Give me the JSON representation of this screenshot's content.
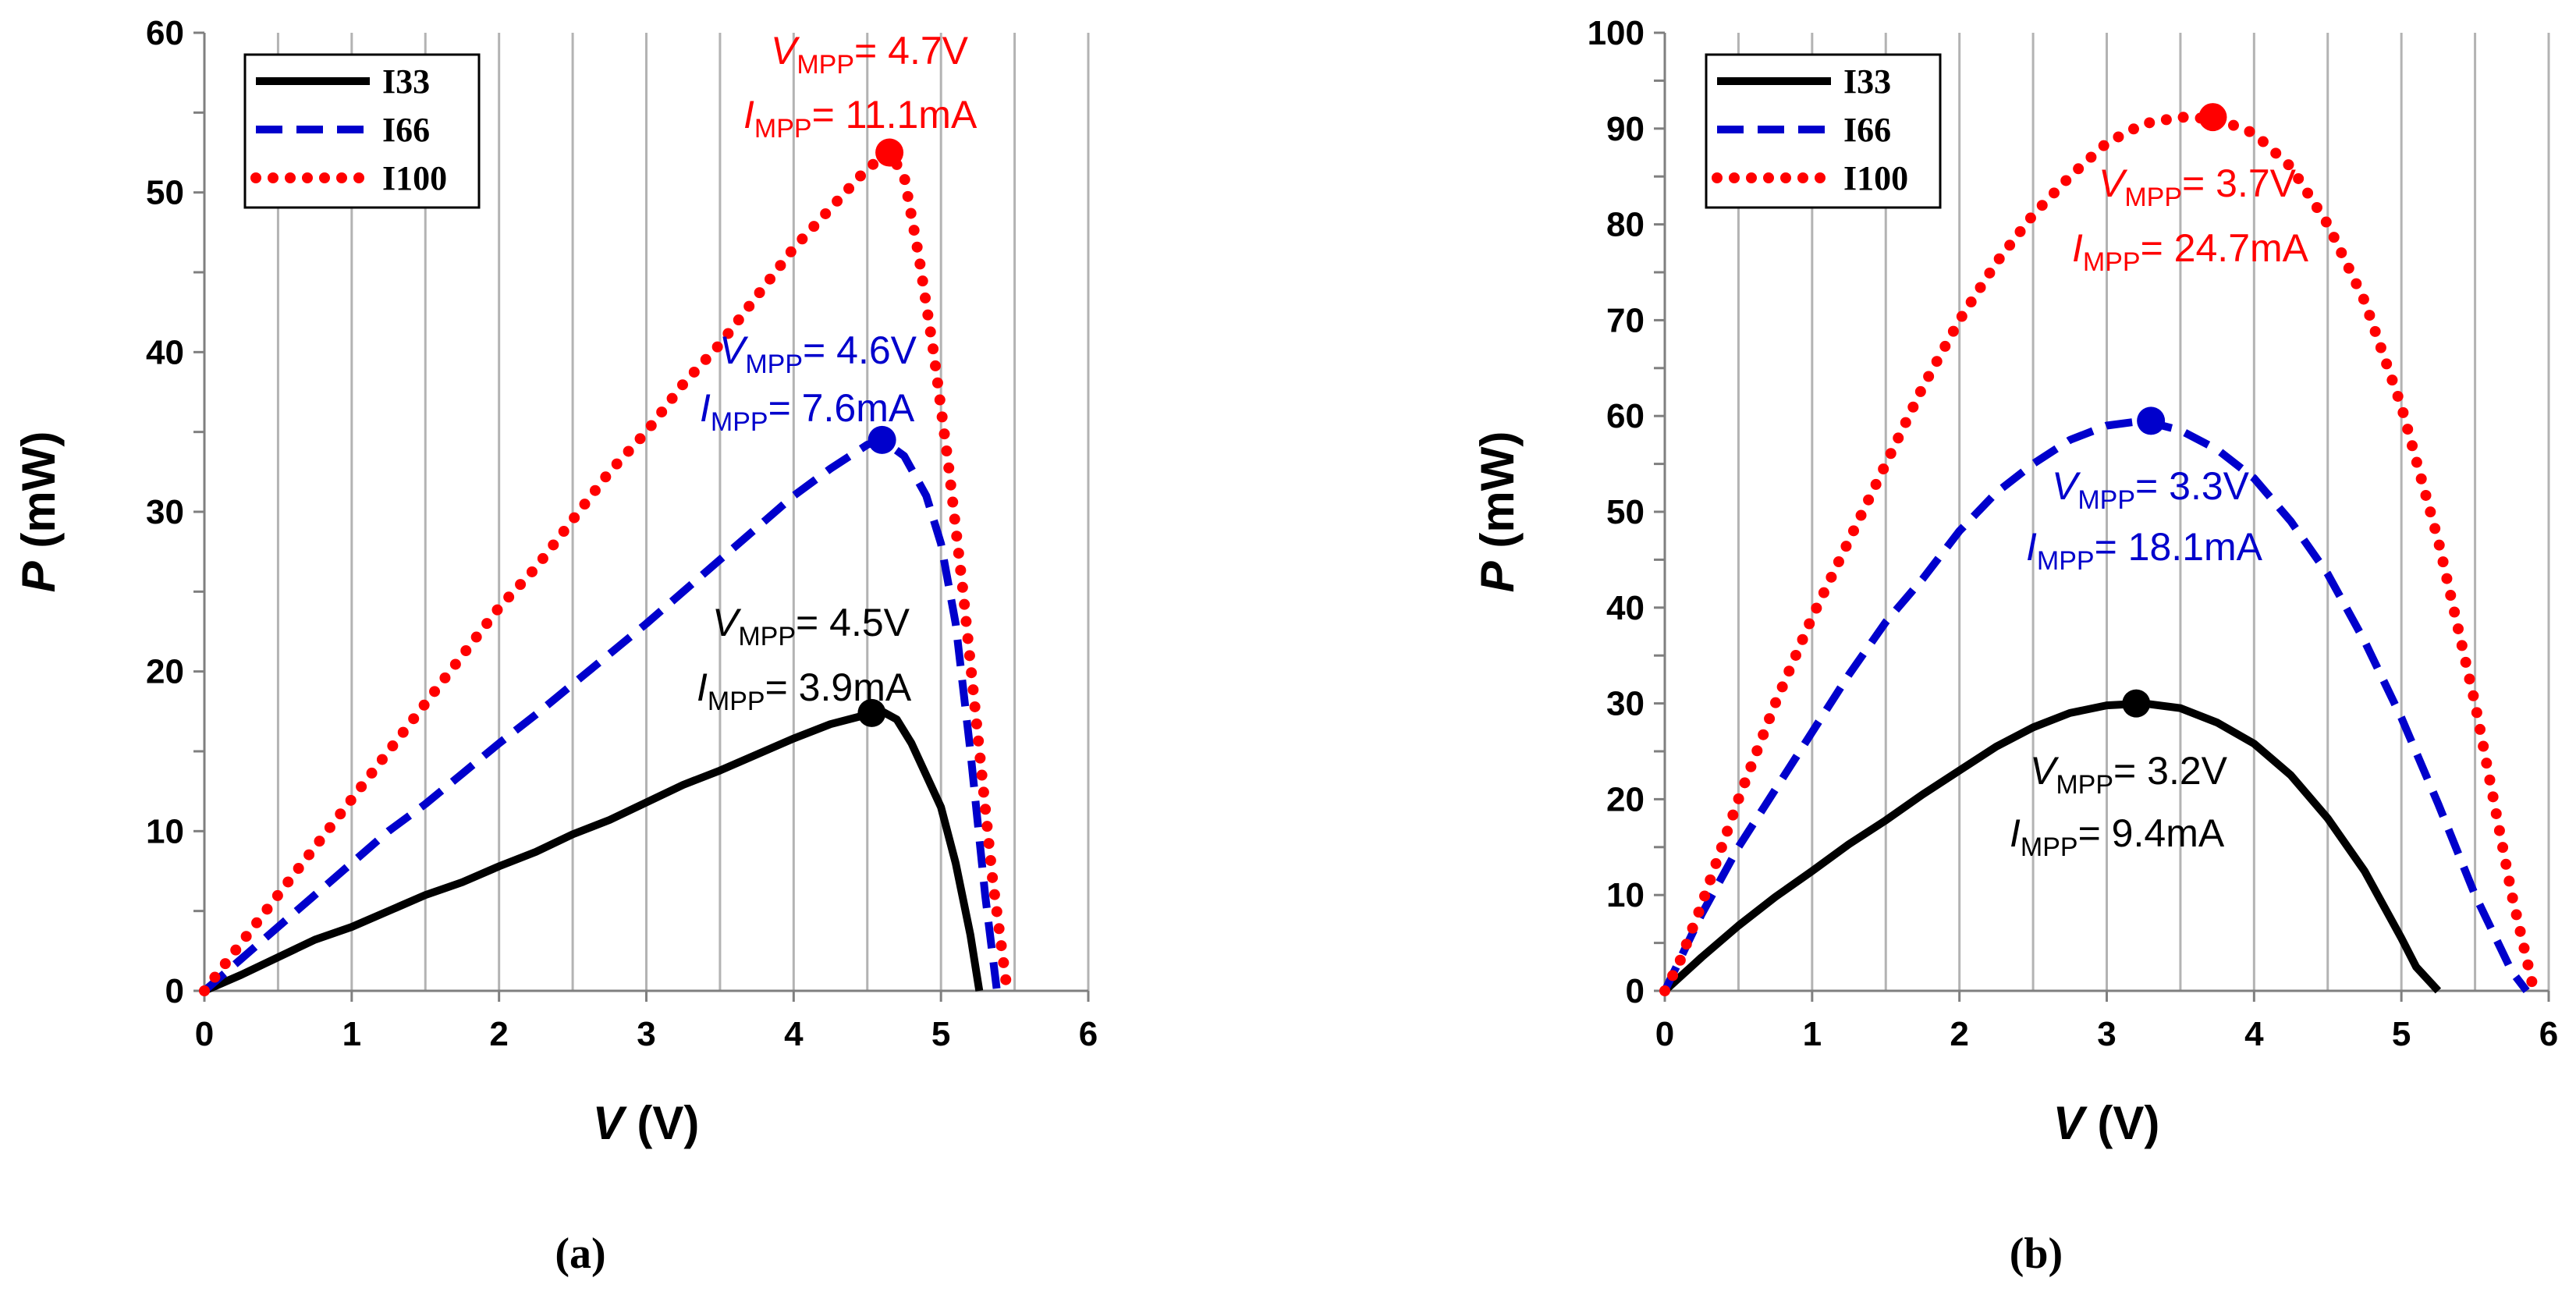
{
  "chart_data": [
    {
      "type": "line",
      "panel_label": "(a)",
      "xlabel_var": "V",
      "xlabel_unit": " (V)",
      "ylabel_var": "P",
      "ylabel_unit": " (mW)",
      "xlim": [
        0,
        6
      ],
      "ylim": [
        0,
        60
      ],
      "x_ticks": [
        0,
        1,
        2,
        3,
        4,
        5,
        6
      ],
      "y_ticks": [
        0,
        10,
        20,
        30,
        40,
        50,
        60
      ],
      "grid": "vertical",
      "legend_position": "top-left",
      "series": [
        {
          "name": "I33",
          "color": "#000000",
          "style": "solid",
          "x": [
            0,
            0.25,
            0.5,
            0.75,
            1.0,
            1.25,
            1.5,
            1.75,
            2.0,
            2.25,
            2.5,
            2.75,
            3.0,
            3.25,
            3.5,
            3.75,
            4.0,
            4.25,
            4.5,
            4.6,
            4.7,
            4.8,
            4.9,
            5.0,
            5.1,
            5.2,
            5.26
          ],
          "y": [
            0,
            1.0,
            2.1,
            3.2,
            4.0,
            5.0,
            6.0,
            6.8,
            7.8,
            8.7,
            9.8,
            10.7,
            11.8,
            12.9,
            13.8,
            14.8,
            15.8,
            16.7,
            17.3,
            17.5,
            17.0,
            15.5,
            13.5,
            11.5,
            8.0,
            3.5,
            0
          ],
          "mpp": {
            "x": 4.53,
            "y": 17.4
          },
          "annotation_v": "= 4.5V",
          "annotation_i": "= 3.9mA"
        },
        {
          "name": "I66",
          "color": "#0000cc",
          "style": "dashed",
          "x": [
            0,
            0.25,
            0.5,
            0.75,
            1.0,
            1.25,
            1.5,
            1.75,
            2.0,
            2.25,
            2.5,
            2.75,
            3.0,
            3.25,
            3.5,
            3.75,
            4.0,
            4.25,
            4.5,
            4.6,
            4.75,
            4.9,
            5.0,
            5.1,
            5.2,
            5.3,
            5.38
          ],
          "y": [
            0,
            2.0,
            4.0,
            6.0,
            8.0,
            10.0,
            11.7,
            13.6,
            15.5,
            17.3,
            19.2,
            21.1,
            23.0,
            25.0,
            27.0,
            29.0,
            31.0,
            32.7,
            34.2,
            34.5,
            33.5,
            31.0,
            28.0,
            23.0,
            15.0,
            6.0,
            0
          ],
          "mpp": {
            "x": 4.6,
            "y": 34.5
          },
          "annotation_v": "= 4.6V",
          "annotation_i": "= 7.6mA"
        },
        {
          "name": "I100",
          "color": "#ff0000",
          "style": "dotted",
          "x": [
            0,
            0.25,
            0.5,
            0.75,
            1.0,
            1.25,
            1.5,
            1.75,
            2.0,
            2.25,
            2.5,
            2.75,
            3.0,
            3.25,
            3.5,
            3.75,
            4.0,
            4.25,
            4.5,
            4.65,
            4.75,
            4.85,
            4.95,
            5.05,
            5.15,
            5.25,
            5.35,
            5.45
          ],
          "y": [
            0,
            3.0,
            6.0,
            9.0,
            12.0,
            15.0,
            18.0,
            21.0,
            24.0,
            26.5,
            29.5,
            32.5,
            35.0,
            38.0,
            40.5,
            43.5,
            46.5,
            49.0,
            51.5,
            52.5,
            51.0,
            46.0,
            40.0,
            33.0,
            25.0,
            16.0,
            7.0,
            0
          ],
          "mpp": {
            "x": 4.65,
            "y": 52.5
          },
          "annotation_v": "= 4.7V",
          "annotation_i": "= 11.1mA"
        }
      ]
    },
    {
      "type": "line",
      "panel_label": "(b)",
      "xlabel_var": "V",
      "xlabel_unit": " (V)",
      "ylabel_var": "P",
      "ylabel_unit": " (mW)",
      "xlim": [
        0,
        6
      ],
      "ylim": [
        0,
        100
      ],
      "x_ticks": [
        0,
        1,
        2,
        3,
        4,
        5,
        6
      ],
      "y_ticks": [
        0,
        10,
        20,
        30,
        40,
        50,
        60,
        70,
        80,
        90,
        100
      ],
      "grid": "vertical",
      "legend_position": "top-left",
      "series": [
        {
          "name": "I33",
          "color": "#000000",
          "style": "solid",
          "x": [
            0,
            0.25,
            0.5,
            0.75,
            1.0,
            1.25,
            1.5,
            1.75,
            2.0,
            2.25,
            2.5,
            2.75,
            3.0,
            3.25,
            3.5,
            3.75,
            4.0,
            4.25,
            4.5,
            4.75,
            5.0,
            5.1,
            5.25
          ],
          "y": [
            0,
            3.5,
            6.8,
            9.8,
            12.5,
            15.3,
            17.8,
            20.5,
            23.0,
            25.5,
            27.5,
            29.0,
            29.8,
            30.0,
            29.5,
            28.0,
            25.8,
            22.5,
            18.0,
            12.5,
            5.5,
            2.5,
            0
          ],
          "mpp": {
            "x": 3.2,
            "y": 30.0
          },
          "annotation_v": "= 3.2V",
          "annotation_i": "= 9.4mA"
        },
        {
          "name": "I66",
          "color": "#0000cc",
          "style": "dashed",
          "x": [
            0,
            0.25,
            0.5,
            0.75,
            1.0,
            1.25,
            1.5,
            1.75,
            2.0,
            2.25,
            2.5,
            2.75,
            3.0,
            3.25,
            3.5,
            3.75,
            4.0,
            4.25,
            4.5,
            4.75,
            5.0,
            5.25,
            5.5,
            5.75,
            5.85
          ],
          "y": [
            0,
            8.0,
            15.0,
            21.0,
            27.0,
            33.0,
            38.5,
            43.0,
            48.0,
            52.0,
            55.0,
            57.5,
            59.0,
            59.5,
            58.5,
            56.5,
            53.5,
            49.0,
            43.5,
            36.5,
            28.5,
            19.5,
            10.0,
            2.0,
            0
          ],
          "mpp": {
            "x": 3.3,
            "y": 59.5
          },
          "annotation_v": "= 3.3V",
          "annotation_i": "= 18.1mA"
        },
        {
          "name": "I100",
          "color": "#ff0000",
          "style": "dotted",
          "x": [
            0,
            0.1,
            0.25,
            0.5,
            0.75,
            1.0,
            1.25,
            1.5,
            1.75,
            2.0,
            2.25,
            2.5,
            2.75,
            3.0,
            3.25,
            3.5,
            3.75,
            4.0,
            4.25,
            4.5,
            4.75,
            5.0,
            5.25,
            5.5,
            5.75,
            5.9
          ],
          "y": [
            0,
            3.0,
            9.0,
            20.0,
            30.0,
            39.0,
            47.0,
            55.0,
            63.0,
            70.0,
            76.0,
            81.0,
            85.0,
            88.5,
            90.5,
            91.2,
            91.0,
            89.5,
            86.0,
            80.0,
            72.0,
            61.0,
            47.0,
            30.0,
            10.0,
            0
          ],
          "mpp": {
            "x": 3.72,
            "y": 91.2
          },
          "annotation_v": "= 3.7V",
          "annotation_i": "= 24.7mA"
        }
      ]
    }
  ],
  "annotation_subscript": "MPP",
  "annotation_v_symbol": "V",
  "annotation_i_symbol": "I"
}
